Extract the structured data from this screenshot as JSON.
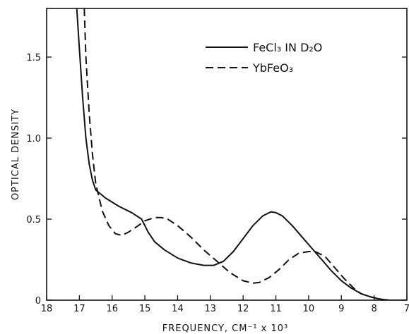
{
  "chart_data": {
    "type": "line",
    "xlabel": "FREQUENCY, CM⁻¹ x 10³",
    "ylabel": "OPTICAL DENSITY",
    "xlim": [
      18,
      7
    ],
    "ylim": [
      0,
      1.8
    ],
    "x_ticks": [
      18,
      17,
      16,
      15,
      14,
      13,
      12,
      11,
      10,
      9,
      8,
      7
    ],
    "y_ticks": [
      0,
      0.5,
      1.0,
      1.5
    ],
    "y_tick_labels": [
      "0",
      "0.5",
      "1.0",
      "1.5"
    ],
    "legend_position": "top-right",
    "grid": false,
    "series": [
      {
        "name": "FeCl₃ IN D₂O",
        "style": "solid",
        "x": [
          17.08,
          17.0,
          16.9,
          16.8,
          16.7,
          16.6,
          16.5,
          16.2,
          15.8,
          15.4,
          15.1,
          14.9,
          14.7,
          14.4,
          14.0,
          13.6,
          13.2,
          12.9,
          12.6,
          12.3,
          12.0,
          11.7,
          11.4,
          11.15,
          11.0,
          10.8,
          10.5,
          10.2,
          9.9,
          9.6,
          9.3,
          9.0,
          8.7,
          8.4,
          8.1,
          7.9,
          7.6,
          7.3,
          7.0
        ],
        "values": [
          1.8,
          1.55,
          1.25,
          1.0,
          0.84,
          0.74,
          0.68,
          0.63,
          0.58,
          0.54,
          0.5,
          0.42,
          0.36,
          0.31,
          0.26,
          0.23,
          0.215,
          0.215,
          0.24,
          0.3,
          0.38,
          0.46,
          0.52,
          0.545,
          0.54,
          0.52,
          0.46,
          0.39,
          0.32,
          0.25,
          0.18,
          0.12,
          0.075,
          0.04,
          0.02,
          0.01,
          0.0,
          0.0,
          0.0
        ]
      },
      {
        "name": "YbFeO₃",
        "style": "dashed",
        "x": [
          16.85,
          16.8,
          16.7,
          16.6,
          16.5,
          16.3,
          16.1,
          15.9,
          15.7,
          15.5,
          15.2,
          15.0,
          14.7,
          14.5,
          14.3,
          14.0,
          13.6,
          13.2,
          12.8,
          12.4,
          12.0,
          11.7,
          11.5,
          11.2,
          10.9,
          10.6,
          10.3,
          10.0,
          9.8,
          9.5,
          9.2,
          8.9,
          8.6,
          8.4,
          8.1,
          7.8,
          7.5,
          7.2,
          7.0
        ],
        "values": [
          1.8,
          1.5,
          1.15,
          0.9,
          0.72,
          0.55,
          0.46,
          0.41,
          0.4,
          0.42,
          0.46,
          0.49,
          0.51,
          0.51,
          0.5,
          0.46,
          0.39,
          0.31,
          0.24,
          0.17,
          0.12,
          0.105,
          0.11,
          0.14,
          0.19,
          0.25,
          0.29,
          0.3,
          0.3,
          0.27,
          0.2,
          0.13,
          0.07,
          0.04,
          0.02,
          0.005,
          0.0,
          0.0,
          0.0
        ]
      }
    ]
  }
}
